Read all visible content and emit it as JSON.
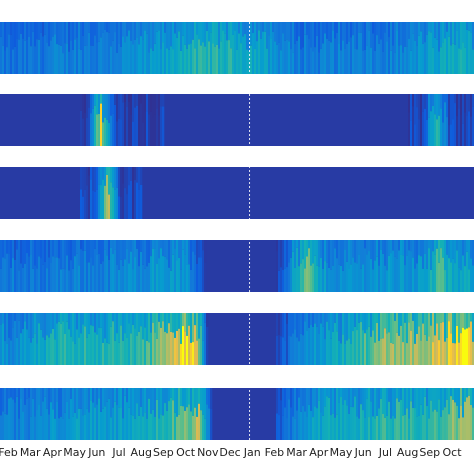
{
  "chart_data": {
    "type": "heatmap",
    "colormap": "parula",
    "value_range": [
      0,
      1
    ],
    "x_tick_labels": [
      "Feb",
      "Mar",
      "Apr",
      "May",
      "Jun",
      "Jul",
      "Aug",
      "Sep",
      "Oct",
      "Nov",
      "Dec",
      "Jan",
      "Feb",
      "Mar",
      "Apr",
      "May",
      "Jun",
      "Jul",
      "Aug",
      "Sep",
      "Oct"
    ],
    "year_divider_at_label_index": 11,
    "grid": false,
    "panels": [
      {
        "name": "",
        "monthly_intensity": [
          0.22,
          0.25,
          0.3,
          0.32,
          0.3,
          0.35,
          0.38,
          0.45,
          0.55,
          0.6,
          0.58,
          0.55,
          0.4,
          0.3,
          0.3,
          0.32,
          0.3,
          0.3,
          0.35,
          0.45,
          0.55
        ],
        "hotspots": [
          {
            "month_index": 8,
            "level": 0.6
          }
        ]
      },
      {
        "name": "",
        "monthly_intensity": [
          0.05,
          0.05,
          0.05,
          0.05,
          0.12,
          0.1,
          0.08,
          0.07,
          0.05,
          0.05,
          0.05,
          0.05,
          0.05,
          0.05,
          0.05,
          0.05,
          0.05,
          0.05,
          0.07,
          0.12,
          0.08
        ],
        "hotspots": [
          {
            "month_index": 4.2,
            "level": 0.9
          },
          {
            "month_index": 19.3,
            "level": 0.7
          }
        ]
      },
      {
        "name": "",
        "monthly_intensity": [
          0.05,
          0.05,
          0.05,
          0.05,
          0.14,
          0.1,
          0.07,
          0.06,
          0.05,
          0.05,
          0.05,
          0.05,
          0.05,
          0.05,
          0.05,
          0.05,
          0.05,
          0.05,
          0.05,
          0.05,
          0.05
        ],
        "hotspots": [
          {
            "month_index": 4.5,
            "level": 0.85
          }
        ]
      },
      {
        "name": "",
        "monthly_intensity": [
          0.3,
          0.25,
          0.3,
          0.32,
          0.3,
          0.35,
          0.38,
          0.45,
          0.4,
          0.05,
          0.05,
          0.05,
          0.05,
          0.5,
          0.45,
          0.38,
          0.4,
          0.42,
          0.42,
          0.45,
          0.5
        ],
        "hotspots": [
          {
            "month_index": 13.5,
            "level": 0.75
          },
          {
            "month_index": 19.4,
            "level": 0.7
          }
        ]
      },
      {
        "name": "",
        "monthly_intensity": [
          0.35,
          0.45,
          0.55,
          0.62,
          0.6,
          0.6,
          0.62,
          0.78,
          0.95,
          0.05,
          0.05,
          0.05,
          0.05,
          0.3,
          0.45,
          0.55,
          0.65,
          0.82,
          0.8,
          0.85,
          0.9
        ],
        "hotspots": [
          {
            "month_index": 8.4,
            "level": 1.0
          },
          {
            "month_index": 20.5,
            "level": 1.0
          }
        ]
      },
      {
        "name": "",
        "monthly_intensity": [
          0.3,
          0.32,
          0.4,
          0.48,
          0.42,
          0.45,
          0.5,
          0.62,
          0.72,
          0.05,
          0.05,
          0.05,
          0.05,
          0.35,
          0.5,
          0.55,
          0.55,
          0.62,
          0.6,
          0.62,
          0.7
        ],
        "hotspots": [
          {
            "month_index": 8.6,
            "level": 0.9
          },
          {
            "month_index": 20.5,
            "level": 0.85
          }
        ]
      }
    ]
  }
}
